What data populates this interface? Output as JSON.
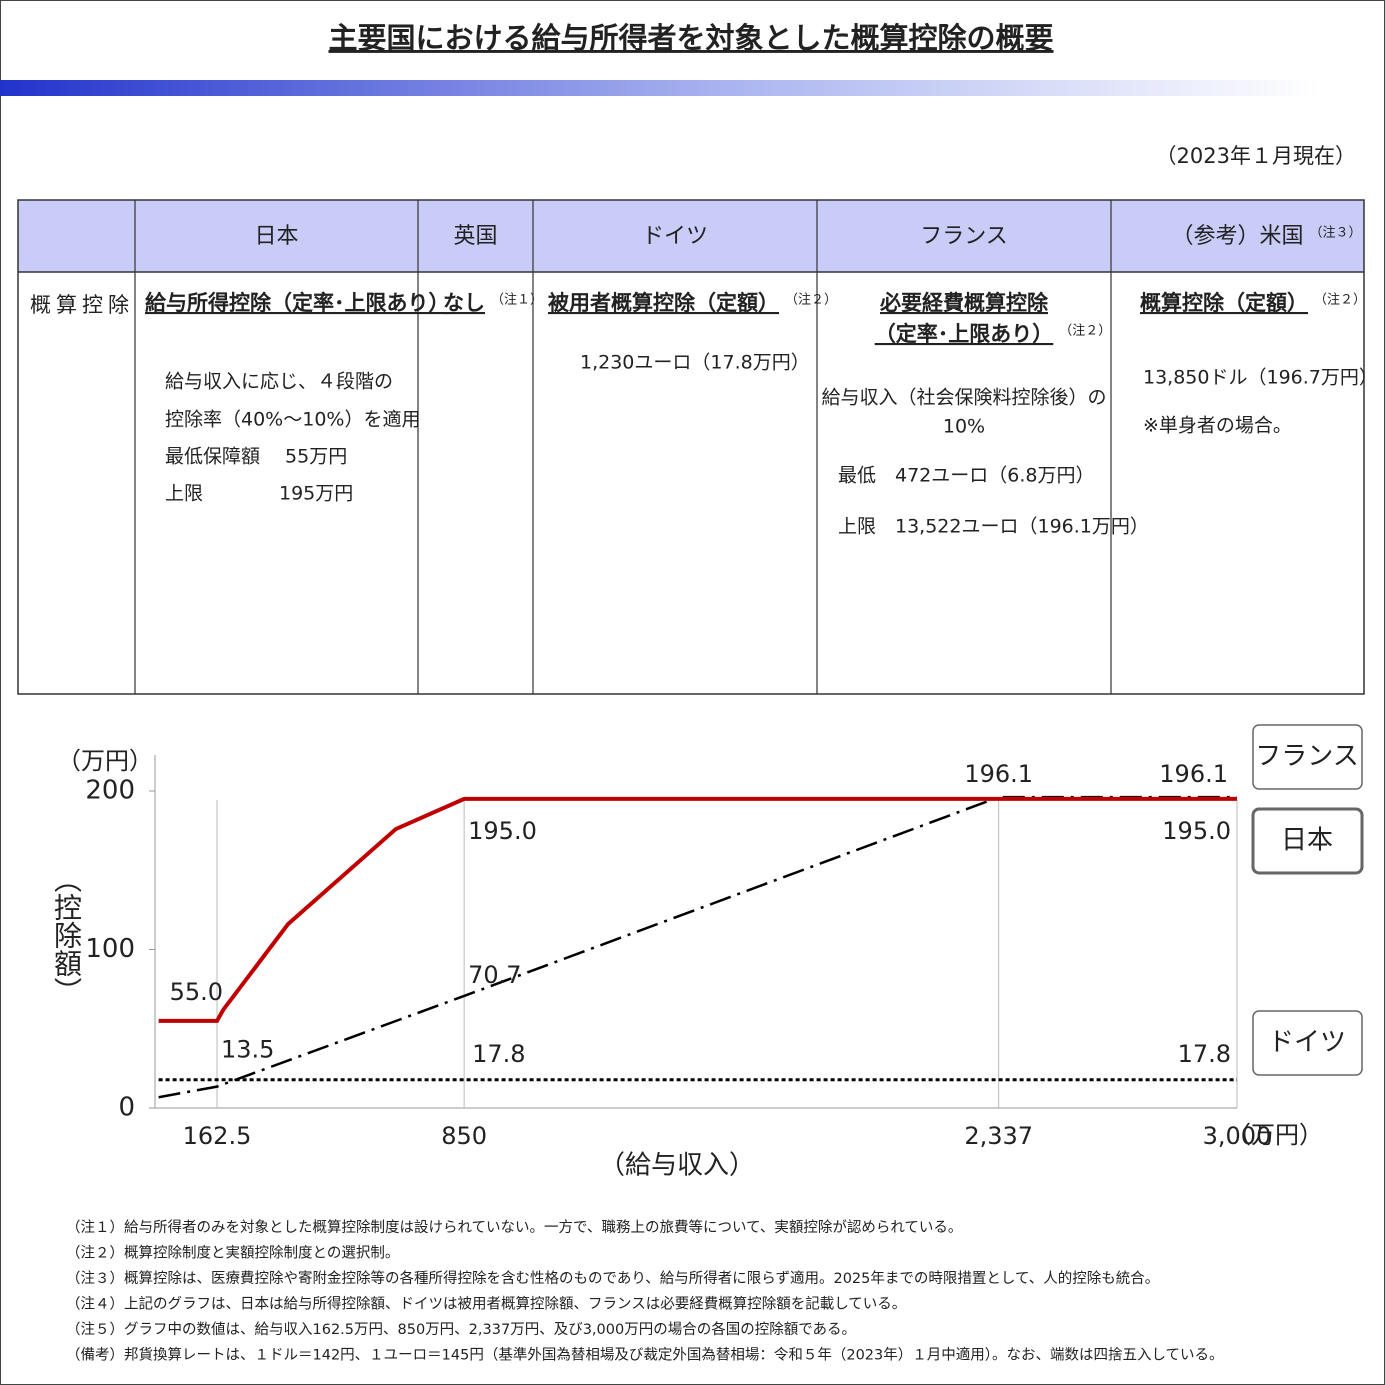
{
  "header": {
    "title": "主要国における給与所得者を対象とした概算控除の概要",
    "date": "（2023年１月現在）"
  },
  "table": {
    "row_label": "概算控除",
    "headers": [
      {
        "label": "日本"
      },
      {
        "label": "英国"
      },
      {
        "label": "ドイツ"
      },
      {
        "label": "フランス"
      },
      {
        "label": "（参考）米国",
        "note": "（注３）"
      }
    ],
    "cells": [
      {
        "title": [
          "給与所得控除（定率･上限あり）"
        ],
        "lines": [
          "給与収入に応じ、４段階の",
          "控除率（40%～10%）を適用",
          "最低保障額　 55万円",
          "上限　　　　195万円"
        ]
      },
      {
        "title": [
          "なし"
        ],
        "note": "（注１）",
        "lines": []
      },
      {
        "title": [
          "被用者概算控除（定額）"
        ],
        "note": "（注２）",
        "lines": [
          "1,230ユーロ（17.8万円）"
        ]
      },
      {
        "title": [
          "必要経費概算控除",
          "（定率･上限あり）"
        ],
        "note": "（注２）",
        "lines": [
          "給与収入（社会保険料控除後）の",
          "10%",
          "最低　472ユーロ（6.8万円）",
          "上限　13,522ユーロ（196.1万円）"
        ]
      },
      {
        "title": [
          "概算控除（定額）"
        ],
        "note": "（注２）",
        "lines": [
          "13,850ドル（196.7万円）",
          "※単身者の場合。"
        ]
      }
    ]
  },
  "chart_data": {
    "type": "line",
    "y_unit": "（万円）",
    "ylabel": "（控除額）",
    "xlabel": "（給与収入）",
    "x_unit": "（万円）",
    "xlim": [
      0,
      3000
    ],
    "ylim": [
      0,
      200
    ],
    "xticks": [
      162.5,
      850,
      {
        "value": 2337,
        "label": "2,337"
      },
      {
        "value": 3000,
        "label": "3,000"
      }
    ],
    "yticks": [
      0,
      100,
      200
    ],
    "grid": true,
    "series": [
      {
        "name": "フランス",
        "color": "#000000",
        "style": "dashdot",
        "x": [
          0,
          162.5,
          850,
          2337,
          3000
        ],
        "values": [
          6.8,
          13.5,
          70.7,
          196.1,
          196.1
        ],
        "value_labels": [
          null,
          "13.5",
          "70.7",
          "196.1",
          "196.1"
        ]
      },
      {
        "name": "日本",
        "color": "#c00000",
        "style": "solid",
        "x": [
          0,
          162.5,
          180,
          360,
          660,
          850,
          3000
        ],
        "values": [
          55,
          55,
          62,
          116,
          176,
          195,
          195
        ],
        "value_labels": [
          null,
          "55.0",
          null,
          null,
          null,
          "195.0",
          "195.0"
        ]
      },
      {
        "name": "ドイツ",
        "color": "#000000",
        "style": "dotted",
        "x": [
          0,
          850,
          3000
        ],
        "values": [
          17.8,
          17.8,
          17.8
        ],
        "value_labels": [
          null,
          "17.8",
          "17.8"
        ]
      }
    ]
  },
  "notes": [
    "（注１）給与所得者のみを対象とした概算控除制度は設けられていない。一方で、職務上の旅費等について、実額控除が認められている。",
    "（注２）概算控除制度と実額控除制度との選択制。",
    "（注３）概算控除は、医療費控除や寄附金控除等の各種所得控除を含む性格のものであり、給与所得者に限らず適用。2025年までの時限措置として、人的控除も統合。",
    "（注４）上記のグラフは、日本は給与所得控除額、ドイツは被用者概算控除額、フランスは必要経費概算控除額を記載している。",
    "（注５）グラフ中の数値は、給与収入162.5万円、850万円、2,337万円、及び3,000万円の場合の各国の控除額である。",
    "（備考）邦貨換算レートは、１ドル＝142円、１ユーロ＝145円（基準外国為替相場及び裁定外国為替相場：令和５年（2023年）１月中適用）。なお、端数は四捨五入している。"
  ]
}
